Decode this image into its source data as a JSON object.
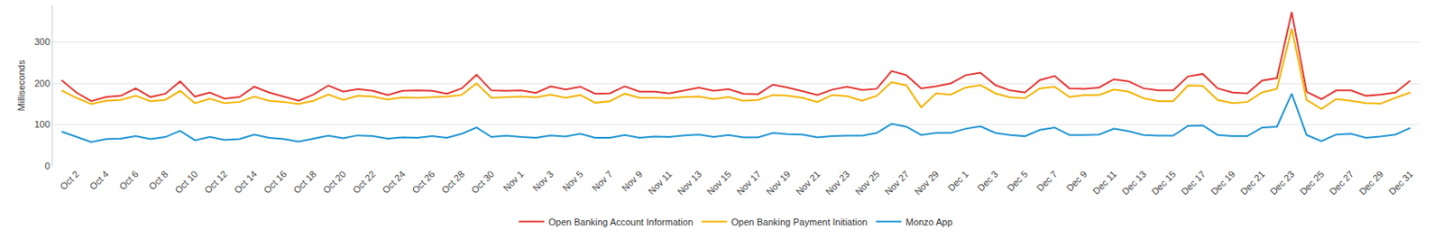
{
  "chart_data": {
    "type": "line",
    "y_label": "Milliseconds",
    "categories": [
      null,
      "Oct 2",
      null,
      "Oct 4",
      null,
      "Oct 6",
      null,
      "Oct 8",
      null,
      "Oct 10",
      null,
      "Oct 12",
      null,
      "Oct 14",
      null,
      "Oct 16",
      null,
      "Oct 18",
      null,
      "Oct 20",
      null,
      "Oct 22",
      null,
      "Oct 24",
      null,
      "Oct 26",
      null,
      "Oct 28",
      null,
      "Oct 30",
      null,
      "Nov 1",
      null,
      "Nov 3",
      null,
      "Nov 5",
      null,
      "Nov 7",
      null,
      "Nov 9",
      null,
      "Nov 11",
      null,
      "Nov 13",
      null,
      "Nov 15",
      null,
      "Nov 17",
      null,
      "Nov 19",
      null,
      "Nov 21",
      null,
      "Nov 23",
      null,
      "Nov 25",
      null,
      "Nov 27",
      null,
      "Nov 29",
      null,
      "Dec 1",
      null,
      "Dec 3",
      null,
      "Dec 5",
      null,
      "Dec 7",
      null,
      "Dec 9",
      null,
      "Dec 11",
      null,
      "Dec 13",
      null,
      "Dec 15",
      null,
      "Dec 17",
      null,
      "Dec 19",
      null,
      "Dec 21",
      null,
      "Dec 23",
      null,
      "Dec 25",
      null,
      "Dec 27",
      null,
      "Dec 29",
      null,
      "Dec 31"
    ],
    "series": [
      {
        "name": "Open Banking Account Information",
        "color": "#e53935",
        "values": [
          208,
          178,
          157,
          167,
          170,
          188,
          167,
          175,
          205,
          168,
          178,
          163,
          167,
          192,
          178,
          168,
          158,
          173,
          195,
          180,
          186,
          182,
          172,
          182,
          183,
          182,
          175,
          188,
          221,
          183,
          182,
          183,
          177,
          193,
          185,
          192,
          175,
          176,
          193,
          180,
          180,
          176,
          183,
          190,
          182,
          186,
          175,
          174,
          197,
          190,
          181,
          172,
          185,
          192,
          184,
          187,
          230,
          220,
          188,
          193,
          200,
          220,
          226,
          196,
          183,
          178,
          208,
          218,
          188,
          187,
          190,
          210,
          205,
          188,
          183,
          183,
          217,
          223,
          188,
          178,
          176,
          207,
          213,
          373,
          180,
          162,
          183,
          183,
          170,
          173,
          178,
          207
        ]
      },
      {
        "name": "Open Banking Payment Initiation",
        "color": "#f4b400",
        "values": [
          183,
          165,
          150,
          158,
          160,
          170,
          157,
          160,
          182,
          152,
          163,
          152,
          155,
          168,
          158,
          155,
          150,
          158,
          173,
          160,
          170,
          168,
          161,
          166,
          165,
          166,
          168,
          172,
          200,
          165,
          167,
          168,
          166,
          173,
          165,
          172,
          153,
          157,
          175,
          165,
          165,
          164,
          167,
          168,
          162,
          167,
          158,
          160,
          172,
          170,
          165,
          155,
          172,
          169,
          158,
          170,
          203,
          195,
          142,
          176,
          173,
          190,
          196,
          176,
          166,
          164,
          188,
          192,
          167,
          172,
          172,
          185,
          180,
          164,
          157,
          157,
          195,
          194,
          160,
          152,
          155,
          178,
          187,
          333,
          160,
          138,
          162,
          158,
          152,
          151,
          165,
          178
        ]
      },
      {
        "name": "Monzo App",
        "color": "#2196d3",
        "values": [
          83,
          70,
          58,
          65,
          66,
          72,
          65,
          70,
          85,
          62,
          70,
          63,
          65,
          76,
          68,
          65,
          59,
          66,
          73,
          67,
          74,
          72,
          66,
          69,
          68,
          72,
          68,
          78,
          93,
          70,
          73,
          70,
          68,
          74,
          71,
          78,
          68,
          68,
          75,
          68,
          71,
          70,
          74,
          76,
          70,
          75,
          69,
          69,
          80,
          77,
          76,
          69,
          72,
          73,
          73,
          80,
          102,
          95,
          75,
          80,
          80,
          90,
          96,
          80,
          75,
          72,
          87,
          93,
          75,
          75,
          76,
          90,
          84,
          75,
          73,
          73,
          97,
          98,
          75,
          72,
          72,
          93,
          95,
          175,
          75,
          60,
          76,
          78,
          68,
          71,
          76,
          92
        ]
      }
    ],
    "ylim": [
      0,
      390
    ],
    "yticks": [
      0,
      100,
      200,
      300
    ],
    "grid": true,
    "legend": "bottom"
  }
}
